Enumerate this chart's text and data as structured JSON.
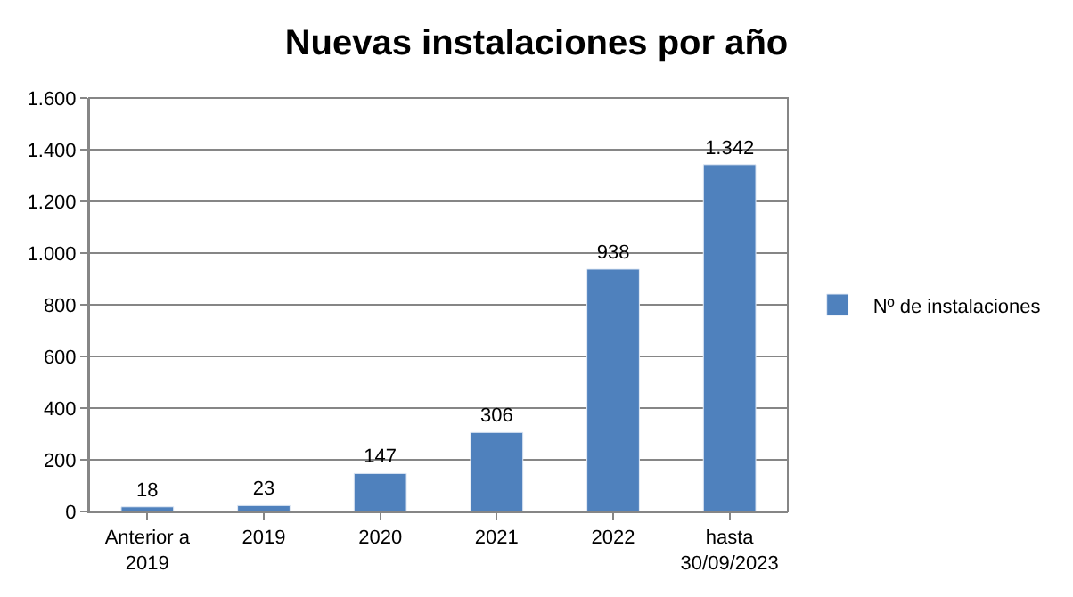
{
  "chart_data": {
    "type": "bar",
    "title": "Nuevas instalaciones por año",
    "categories": [
      "Anterior a 2019",
      "2019",
      "2020",
      "2021",
      "2022",
      "hasta 30/09/2023"
    ],
    "series": [
      {
        "name": "Nº de instalaciones",
        "color": "#4f81bd",
        "values": [
          18,
          23,
          147,
          306,
          938,
          1342
        ],
        "value_labels": [
          "18",
          "23",
          "147",
          "306",
          "938",
          "1.342"
        ]
      }
    ],
    "ylim": [
      0,
      1600
    ],
    "yticks": [
      0,
      200,
      400,
      600,
      800,
      {
        "value": 1000,
        "label": "1.000"
      },
      {
        "value": 1200,
        "label": "1.200"
      },
      {
        "value": 1400,
        "label": "1.400"
      },
      {
        "value": 1600,
        "label": "1.600"
      }
    ],
    "grid": "y",
    "legend": "right"
  }
}
